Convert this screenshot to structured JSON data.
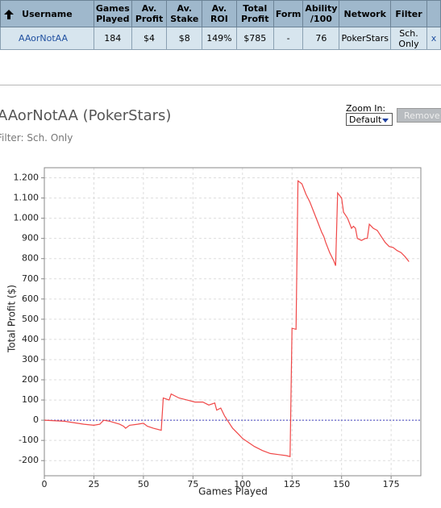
{
  "table": {
    "header": [
      "Username",
      "Games Played",
      "Av. Profit",
      "Av. Stake",
      "Av. ROI",
      "Total Profit",
      "Form",
      "Ability /100",
      "Network",
      "Filter"
    ],
    "rows": [
      [
        "AAorNotAA",
        "184",
        "$4",
        "$8",
        "149%",
        "$785",
        "-",
        "76",
        "PokerStars",
        "Sch. Only",
        "x"
      ]
    ]
  },
  "title": "AAorNotAA (PokerStars)",
  "filter": "Filter: Sch. Only",
  "zoom": {
    "label": "Zoom In:",
    "selected": "Default",
    "button": "Remove"
  },
  "chart_data": {
    "type": "line",
    "x_label": "Games Played",
    "y_label": "Total Profit ($)",
    "xlim": [
      0,
      190
    ],
    "xticks": [
      0,
      25,
      50,
      75,
      100,
      125,
      150,
      175
    ],
    "ylim": [
      -275,
      1250
    ],
    "yticks": [
      -200,
      -100,
      0,
      100,
      200,
      300,
      400,
      500,
      600,
      700,
      800,
      900,
      {
        "value": 1000,
        "label": "1.000"
      },
      {
        "value": 1100,
        "label": "1.100"
      },
      {
        "value": 1200,
        "label": "1.200"
      }
    ],
    "grid": true,
    "series": [
      {
        "name": "Total Profit",
        "color": "#f04848",
        "x": [
          0,
          10,
          20,
          25,
          28,
          30,
          33,
          38,
          40,
          41,
          43,
          47,
          50,
          52,
          55,
          59,
          60,
          63,
          64,
          68,
          72,
          76,
          80,
          83,
          86,
          87,
          89,
          91,
          93,
          95,
          98,
          100,
          103,
          106,
          110,
          114,
          118,
          122,
          124,
          125,
          127,
          128,
          130,
          132,
          134,
          136,
          138,
          140,
          141,
          142,
          144,
          146,
          147,
          148,
          150,
          151,
          153,
          155,
          156,
          157,
          158,
          160,
          162,
          163,
          164,
          166,
          168,
          170,
          172,
          174,
          176,
          178,
          180,
          182,
          184
        ],
        "values": [
          0,
          -5,
          -20,
          -25,
          -20,
          0,
          -5,
          -20,
          -30,
          -40,
          -25,
          -20,
          -15,
          -30,
          -40,
          -50,
          110,
          100,
          130,
          110,
          100,
          90,
          90,
          75,
          85,
          50,
          60,
          20,
          -10,
          -40,
          -70,
          -90,
          -110,
          -130,
          -150,
          -165,
          -170,
          -175,
          -180,
          455,
          450,
          1185,
          1170,
          1120,
          1080,
          1030,
          980,
          930,
          910,
          880,
          830,
          790,
          765,
          1125,
          1100,
          1030,
          1000,
          950,
          960,
          950,
          900,
          890,
          900,
          900,
          970,
          950,
          940,
          910,
          880,
          860,
          855,
          840,
          830,
          810,
          785
        ]
      }
    ]
  }
}
